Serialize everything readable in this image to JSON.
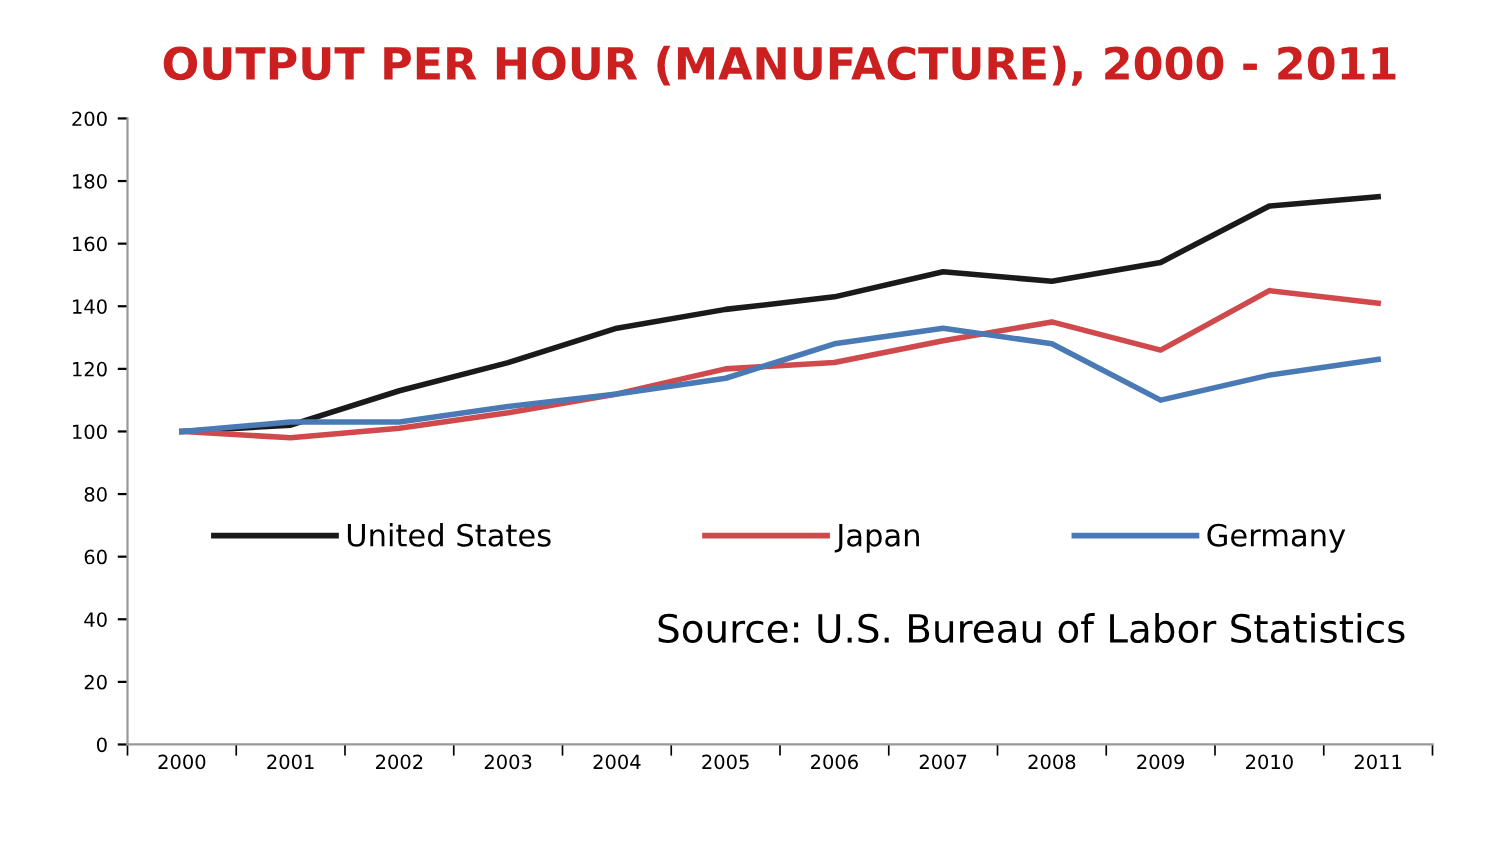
{
  "chart_data": {
    "type": "line",
    "title": "OUTPUT PER HOUR (MANUFACTURE), 2000 - 2011",
    "categories": [
      "2000",
      "2001",
      "2002",
      "2003",
      "2004",
      "2005",
      "2006",
      "2007",
      "2008",
      "2009",
      "2010",
      "2011"
    ],
    "series": [
      {
        "name": "United States",
        "color": "#1a1a1a",
        "values": [
          100,
          102,
          113,
          122,
          133,
          139,
          143,
          151,
          148,
          154,
          172,
          175
        ]
      },
      {
        "name": "Japan",
        "color": "#d0494c",
        "values": [
          100,
          98,
          101,
          106,
          112,
          120,
          122,
          129,
          135,
          126,
          145,
          141
        ]
      },
      {
        "name": "Germany",
        "color": "#4a7ab5",
        "values": [
          100,
          103,
          103,
          108,
          112,
          117,
          128,
          133,
          128,
          110,
          118,
          123
        ]
      }
    ],
    "ylim": [
      0,
      200
    ],
    "yticks": [
      0,
      20,
      40,
      60,
      80,
      100,
      120,
      140,
      160,
      180,
      200
    ],
    "grid": false,
    "legend": "center",
    "marker": "none",
    "line_style": "solid",
    "annotations": [
      "Source: U.S. Bureau of Labor Statistics"
    ]
  }
}
